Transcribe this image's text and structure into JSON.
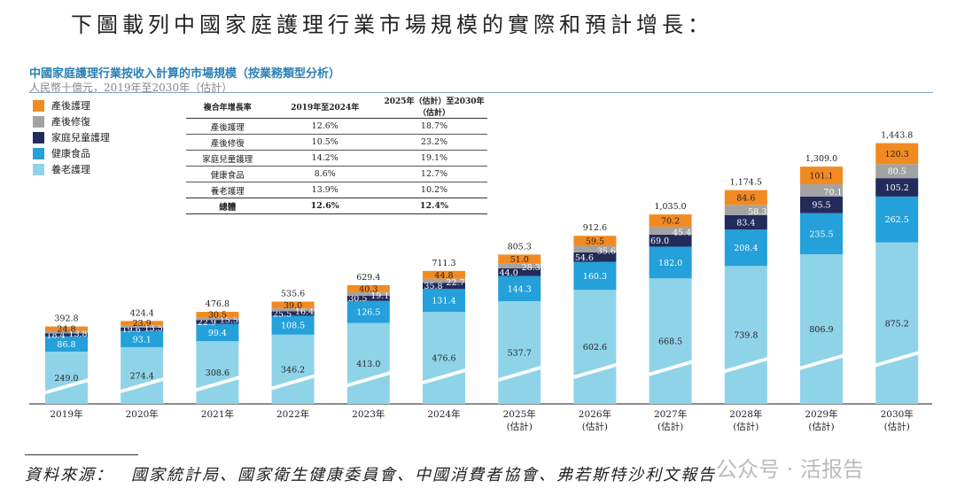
{
  "heading": "下圖載列中國家庭護理行業市場規模的實際和預計增長：",
  "source": "資料來源：　國家統計局、國家衛生健康委員會、中國消費者協會、弗若斯特沙利文報告",
  "watermark": "公众号 · 活报告",
  "cagr_table": {
    "headers": [
      "複合年增長率",
      "2019年至2024年",
      "2025年（估計）至2030年（估計）"
    ],
    "rows": [
      [
        "產後護理",
        "12.6%",
        "18.7%"
      ],
      [
        "產後修復",
        "10.5%",
        "23.2%"
      ],
      [
        "家庭兒童護理",
        "14.2%",
        "19.1%"
      ],
      [
        "健康食品",
        "8.6%",
        "12.7%"
      ],
      [
        "養老護理",
        "13.9%",
        "10.2%"
      ]
    ],
    "total": [
      "總體",
      "12.6%",
      "12.4%"
    ]
  },
  "chart_data": {
    "type": "bar",
    "stacked": true,
    "title": "中國家庭護理行業按收入計算的市場規模（按業務類型分析）",
    "ylabel": "人民幣十億元，2019年至2030年（估計）",
    "axis_break": true,
    "legend_position": "top-left",
    "categories": [
      "2019年",
      "2020年",
      "2021年",
      "2022年",
      "2023年",
      "2024年",
      "2025年",
      "2026年",
      "2027年",
      "2028年",
      "2029年",
      "2030年"
    ],
    "category_notes": [
      "",
      "",
      "",
      "",
      "",
      "",
      "(估計)",
      "(估計)",
      "(估計)",
      "(估計)",
      "(估計)",
      "(估計)"
    ],
    "series": [
      {
        "name": "養老護理",
        "color": "#8fd3e8",
        "values": [
          249.0,
          274.4,
          308.6,
          346.2,
          413.0,
          476.6,
          537.7,
          602.6,
          668.5,
          739.8,
          806.9,
          875.2
        ]
      },
      {
        "name": "健康食品",
        "color": "#24a0da",
        "values": [
          86.8,
          93.1,
          99.4,
          108.5,
          126.5,
          131.4,
          144.3,
          160.3,
          182.0,
          208.4,
          235.5,
          262.5
        ]
      },
      {
        "name": "家庭兒童護理",
        "color": "#222b5a",
        "values": [
          18.4,
          19.6,
          22.9,
          25.5,
          30.5,
          35.8,
          44.0,
          54.6,
          69.0,
          83.4,
          95.5,
          105.2
        ]
      },
      {
        "name": "產後修復",
        "color": "#a3a3a3",
        "values": [
          13.8,
          13.5,
          15.5,
          16.4,
          19.1,
          22.7,
          28.3,
          35.6,
          45.4,
          58.3,
          70.1,
          80.5
        ]
      },
      {
        "name": "產後護理",
        "color": "#f28a22",
        "values": [
          24.8,
          23.9,
          30.5,
          39.0,
          40.3,
          44.8,
          51.0,
          59.5,
          70.2,
          84.6,
          101.1,
          120.3
        ]
      }
    ],
    "totals": [
      "392.8",
      "424.4",
      "476.8",
      "535.6",
      "629.4",
      "711.3",
      "805.3",
      "912.6",
      "1,035.0",
      "1,174.5",
      "1,309.0",
      "1,443.8"
    ]
  }
}
